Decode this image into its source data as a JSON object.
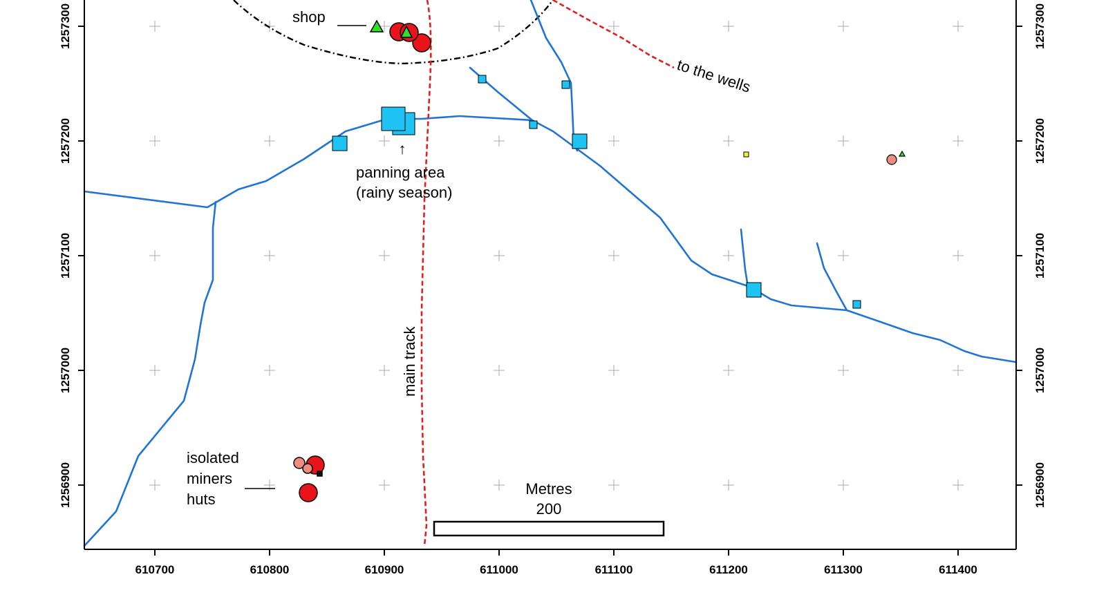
{
  "map": {
    "x_axis_labels": [
      "610700",
      "610800",
      "610900",
      "611000",
      "611100",
      "611200",
      "611300",
      "611400"
    ],
    "y_axis_labels": [
      "1257300",
      "1257200",
      "1257100",
      "1257000",
      "1256900"
    ],
    "labels": {
      "shop": "shop",
      "to_the_wells": "to the wells",
      "panning_line1": "panning area",
      "panning_line2": "(rainy season)",
      "main_track": "main track",
      "isolated_line1": "isolated",
      "isolated_line2": "miners",
      "isolated_line3": "huts"
    },
    "scale_bar": {
      "unit": "Metres",
      "value": "200"
    },
    "colors": {
      "stream": "#1f74d6",
      "track": "#e02020",
      "hut_red": "#e8141a",
      "hut_pink": "#f08b80",
      "pond_blue": "#1ec3f3",
      "triangle_green": "#2ee02a",
      "yellow": "#f2f23a",
      "grid": "#b8b8b8"
    }
  }
}
